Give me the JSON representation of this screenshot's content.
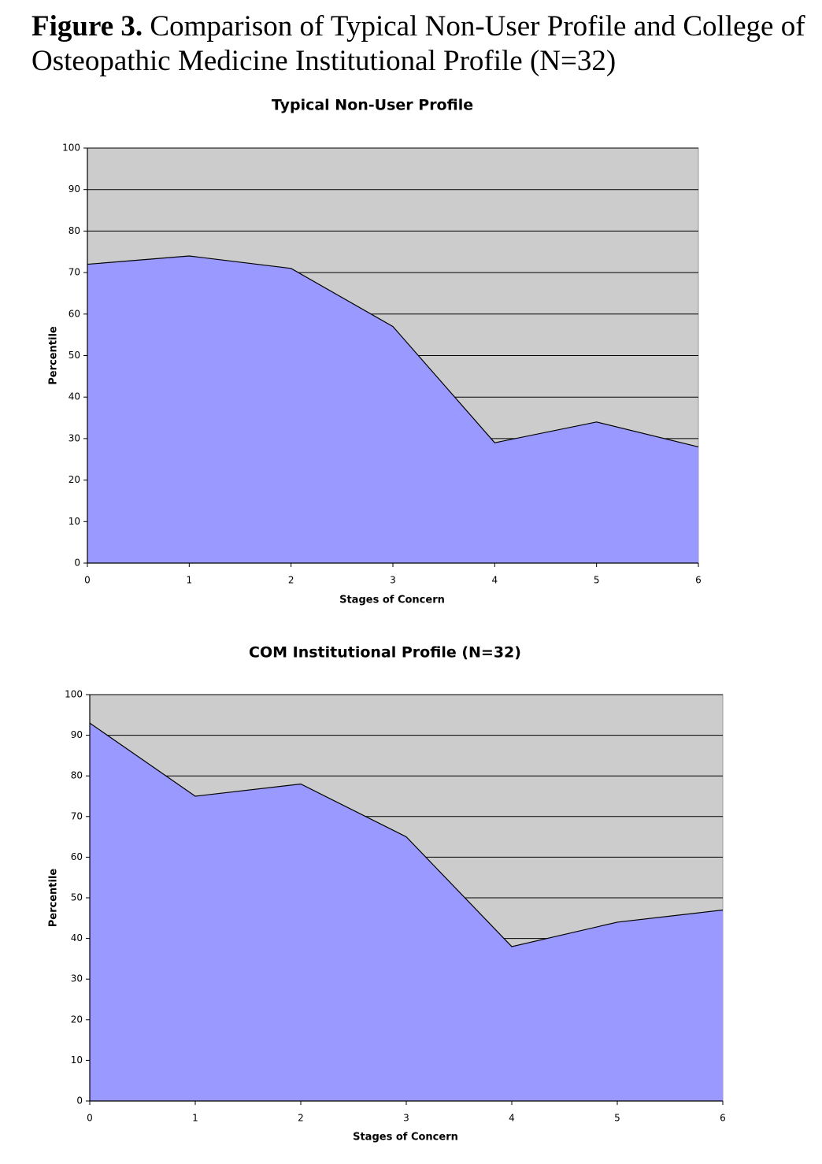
{
  "figure_label": "Figure 3.",
  "caption": "Comparison of Typical Non-User Profile and College of Osteopathic Medicine Institutional Profile (N=32)",
  "chart_data": [
    {
      "type": "area",
      "title": "Typical Non-User Profile",
      "x_label": "Stages of Concern",
      "y_label": "Percentile",
      "x": [
        0,
        1,
        2,
        3,
        4,
        5,
        6
      ],
      "values": [
        72,
        74,
        71,
        57,
        29,
        34,
        28
      ],
      "color": "#9999ff",
      "background": "#cccccc",
      "xlim": [
        0,
        6
      ],
      "xticks": [
        0,
        1,
        2,
        3,
        4,
        5,
        6
      ],
      "ylim": [
        0,
        100
      ],
      "yticks": [
        0,
        10,
        20,
        30,
        40,
        50,
        60,
        70,
        80,
        90,
        100
      ],
      "grid": true
    },
    {
      "type": "area",
      "title": "COM Institutional Profile (N=32)",
      "x_label": "Stages of Concern",
      "y_label": "Percentile",
      "x": [
        0,
        1,
        2,
        3,
        4,
        5,
        6
      ],
      "values": [
        93,
        75,
        78,
        65,
        38,
        44,
        47
      ],
      "color": "#9999ff",
      "background": "#cccccc",
      "xlim": [
        0,
        6
      ],
      "xticks": [
        0,
        1,
        2,
        3,
        4,
        5,
        6
      ],
      "ylim": [
        0,
        100
      ],
      "yticks": [
        0,
        10,
        20,
        30,
        40,
        50,
        60,
        70,
        80,
        90,
        100
      ],
      "grid": true
    }
  ]
}
